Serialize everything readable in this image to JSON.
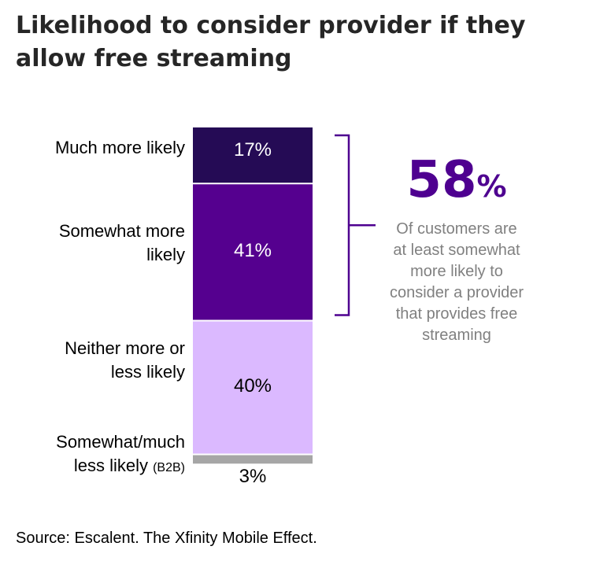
{
  "title": "Likelihood to consider provider if they allow free streaming",
  "chart_data": {
    "type": "bar",
    "stacked": true,
    "orientation": "vertical",
    "unit": "%",
    "categories": [
      "Much more likely",
      "Somewhat more likely",
      "Neither more or less likely",
      "Somewhat/much less likely (B2B)"
    ],
    "values": [
      17,
      41,
      40,
      3
    ],
    "value_labels": [
      "17%",
      "41%",
      "40%",
      "3%"
    ],
    "colors": [
      "#250b55",
      "#55008f",
      "#dbb9ff",
      "#a6a6a6"
    ],
    "label_colors": [
      "#ffffff",
      "#ffffff",
      "#000000",
      "#000000"
    ]
  },
  "category_labels": [
    {
      "line1": "Much more likely",
      "line2": "",
      "sub": ""
    },
    {
      "line1": "Somewhat more",
      "line2": "likely",
      "sub": ""
    },
    {
      "line1": "Neither more or",
      "line2": "less likely",
      "sub": ""
    },
    {
      "line1": "Somewhat/much",
      "line2": "less likely",
      "sub": "(B2B)"
    }
  ],
  "callout": {
    "number": "58",
    "percent_sign": "%",
    "lines": [
      "Of customers are",
      "at least somewhat",
      "more likely to",
      "consider a provider",
      "that provides free",
      "streaming"
    ],
    "bracket_color": "#4e0090"
  },
  "source": "Source: Escalent. The Xfinity Mobile Effect."
}
